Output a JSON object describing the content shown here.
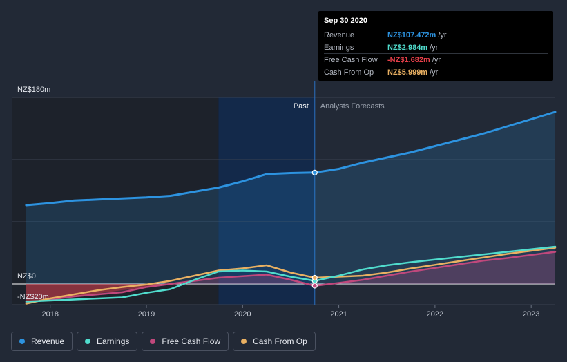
{
  "tooltip": {
    "date": "Sep 30 2020",
    "rows": [
      {
        "label": "Revenue",
        "value": "NZ$107.472m",
        "unit": "/yr",
        "color": "#2d93e0"
      },
      {
        "label": "Earnings",
        "value": "NZ$2.984m",
        "unit": "/yr",
        "color": "#50dccd"
      },
      {
        "label": "Free Cash Flow",
        "value": "-NZ$1.682m",
        "unit": "/yr",
        "color": "#e8404a"
      },
      {
        "label": "Cash From Op",
        "value": "NZ$5.999m",
        "unit": "/yr",
        "color": "#e9b062"
      }
    ]
  },
  "segments": {
    "past": "Past",
    "forecast": "Analysts Forecasts"
  },
  "legend": [
    {
      "label": "Revenue",
      "color": "#2d93e0"
    },
    {
      "label": "Earnings",
      "color": "#50dccd"
    },
    {
      "label": "Free Cash Flow",
      "color": "#c0487c"
    },
    {
      "label": "Cash From Op",
      "color": "#e9b062"
    }
  ],
  "chart_data": {
    "type": "line",
    "y_labels": [
      "NZ$180m",
      "NZ$0",
      "-NZ$20m"
    ],
    "ylim": [
      -20,
      180
    ],
    "xlim": [
      2017.6,
      2023.25
    ],
    "x_ticks": [
      {
        "label": "2018",
        "x": 2018
      },
      {
        "label": "2019",
        "x": 2019
      },
      {
        "label": "2020",
        "x": 2020
      },
      {
        "label": "2021",
        "x": 2021
      },
      {
        "label": "2022",
        "x": 2022
      },
      {
        "label": "2023",
        "x": 2023
      }
    ],
    "past_end": 2020.75,
    "highlight_start": 2019.75,
    "series": [
      {
        "name": "Revenue",
        "color": "#2d93e0",
        "fill": true,
        "points": [
          [
            2017.75,
            76
          ],
          [
            2018.0,
            78
          ],
          [
            2018.25,
            80.5
          ],
          [
            2018.5,
            81.5
          ],
          [
            2018.75,
            82.5
          ],
          [
            2019.0,
            83.5
          ],
          [
            2019.25,
            85
          ],
          [
            2019.5,
            89
          ],
          [
            2019.75,
            93
          ],
          [
            2020.0,
            99
          ],
          [
            2020.25,
            106
          ],
          [
            2020.5,
            107
          ],
          [
            2020.75,
            107.5
          ],
          [
            2021.0,
            111
          ],
          [
            2021.25,
            117
          ],
          [
            2021.5,
            122
          ],
          [
            2021.75,
            127
          ],
          [
            2022.0,
            133
          ],
          [
            2022.25,
            139
          ],
          [
            2022.5,
            145
          ],
          [
            2022.75,
            152
          ],
          [
            2023.0,
            159
          ],
          [
            2023.25,
            166
          ]
        ]
      },
      {
        "name": "Earnings",
        "color": "#50dccd",
        "fill": false,
        "points": [
          [
            2017.75,
            -17
          ],
          [
            2018.0,
            -16
          ],
          [
            2018.25,
            -15
          ],
          [
            2018.5,
            -14
          ],
          [
            2018.75,
            -13
          ],
          [
            2019.0,
            -8.5
          ],
          [
            2019.25,
            -5
          ],
          [
            2019.5,
            4
          ],
          [
            2019.75,
            12
          ],
          [
            2020.0,
            13
          ],
          [
            2020.25,
            12
          ],
          [
            2020.5,
            7
          ],
          [
            2020.75,
            3
          ],
          [
            2021.0,
            8
          ],
          [
            2021.25,
            14
          ],
          [
            2021.5,
            18
          ],
          [
            2021.75,
            21
          ],
          [
            2022.0,
            23.5
          ],
          [
            2022.25,
            26
          ],
          [
            2022.5,
            28.5
          ],
          [
            2022.75,
            31
          ],
          [
            2023.0,
            33.5
          ],
          [
            2023.25,
            36
          ]
        ]
      },
      {
        "name": "Free Cash Flow",
        "color": "#c0487c",
        "fill": true,
        "points": [
          [
            2017.75,
            -18
          ],
          [
            2018.0,
            -15
          ],
          [
            2018.25,
            -12
          ],
          [
            2018.5,
            -10
          ],
          [
            2018.75,
            -8
          ],
          [
            2019.0,
            -3
          ],
          [
            2019.25,
            0
          ],
          [
            2019.5,
            3
          ],
          [
            2019.75,
            6
          ],
          [
            2020.0,
            7.5
          ],
          [
            2020.25,
            9
          ],
          [
            2020.5,
            4
          ],
          [
            2020.75,
            -1.7
          ],
          [
            2021.0,
            1
          ],
          [
            2021.25,
            4
          ],
          [
            2021.5,
            8
          ],
          [
            2021.75,
            12
          ],
          [
            2022.0,
            15.5
          ],
          [
            2022.25,
            19
          ],
          [
            2022.5,
            22.5
          ],
          [
            2022.75,
            25
          ],
          [
            2023.0,
            28
          ],
          [
            2023.25,
            31
          ]
        ]
      },
      {
        "name": "Cash From Op",
        "color": "#e9b062",
        "fill": false,
        "points": [
          [
            2017.75,
            -19
          ],
          [
            2018.0,
            -14
          ],
          [
            2018.25,
            -10
          ],
          [
            2018.5,
            -6
          ],
          [
            2018.75,
            -3
          ],
          [
            2019.0,
            -0.5
          ],
          [
            2019.25,
            3
          ],
          [
            2019.5,
            8
          ],
          [
            2019.75,
            13
          ],
          [
            2020.0,
            15
          ],
          [
            2020.25,
            18
          ],
          [
            2020.5,
            11
          ],
          [
            2020.75,
            6
          ],
          [
            2021.0,
            7
          ],
          [
            2021.25,
            8
          ],
          [
            2021.5,
            11
          ],
          [
            2021.75,
            15
          ],
          [
            2022.0,
            18.5
          ],
          [
            2022.25,
            22
          ],
          [
            2022.5,
            25.5
          ],
          [
            2022.75,
            29
          ],
          [
            2023.0,
            32
          ],
          [
            2023.25,
            35
          ]
        ]
      }
    ],
    "markers": [
      {
        "series": "Revenue",
        "x": 2020.75,
        "y": 107.472
      },
      {
        "series": "Earnings",
        "x": 2020.75,
        "y": 2.984
      },
      {
        "series": "Free Cash Flow",
        "x": 2020.75,
        "y": -1.682
      },
      {
        "series": "Cash From Op",
        "x": 2020.75,
        "y": 5.999
      }
    ]
  }
}
